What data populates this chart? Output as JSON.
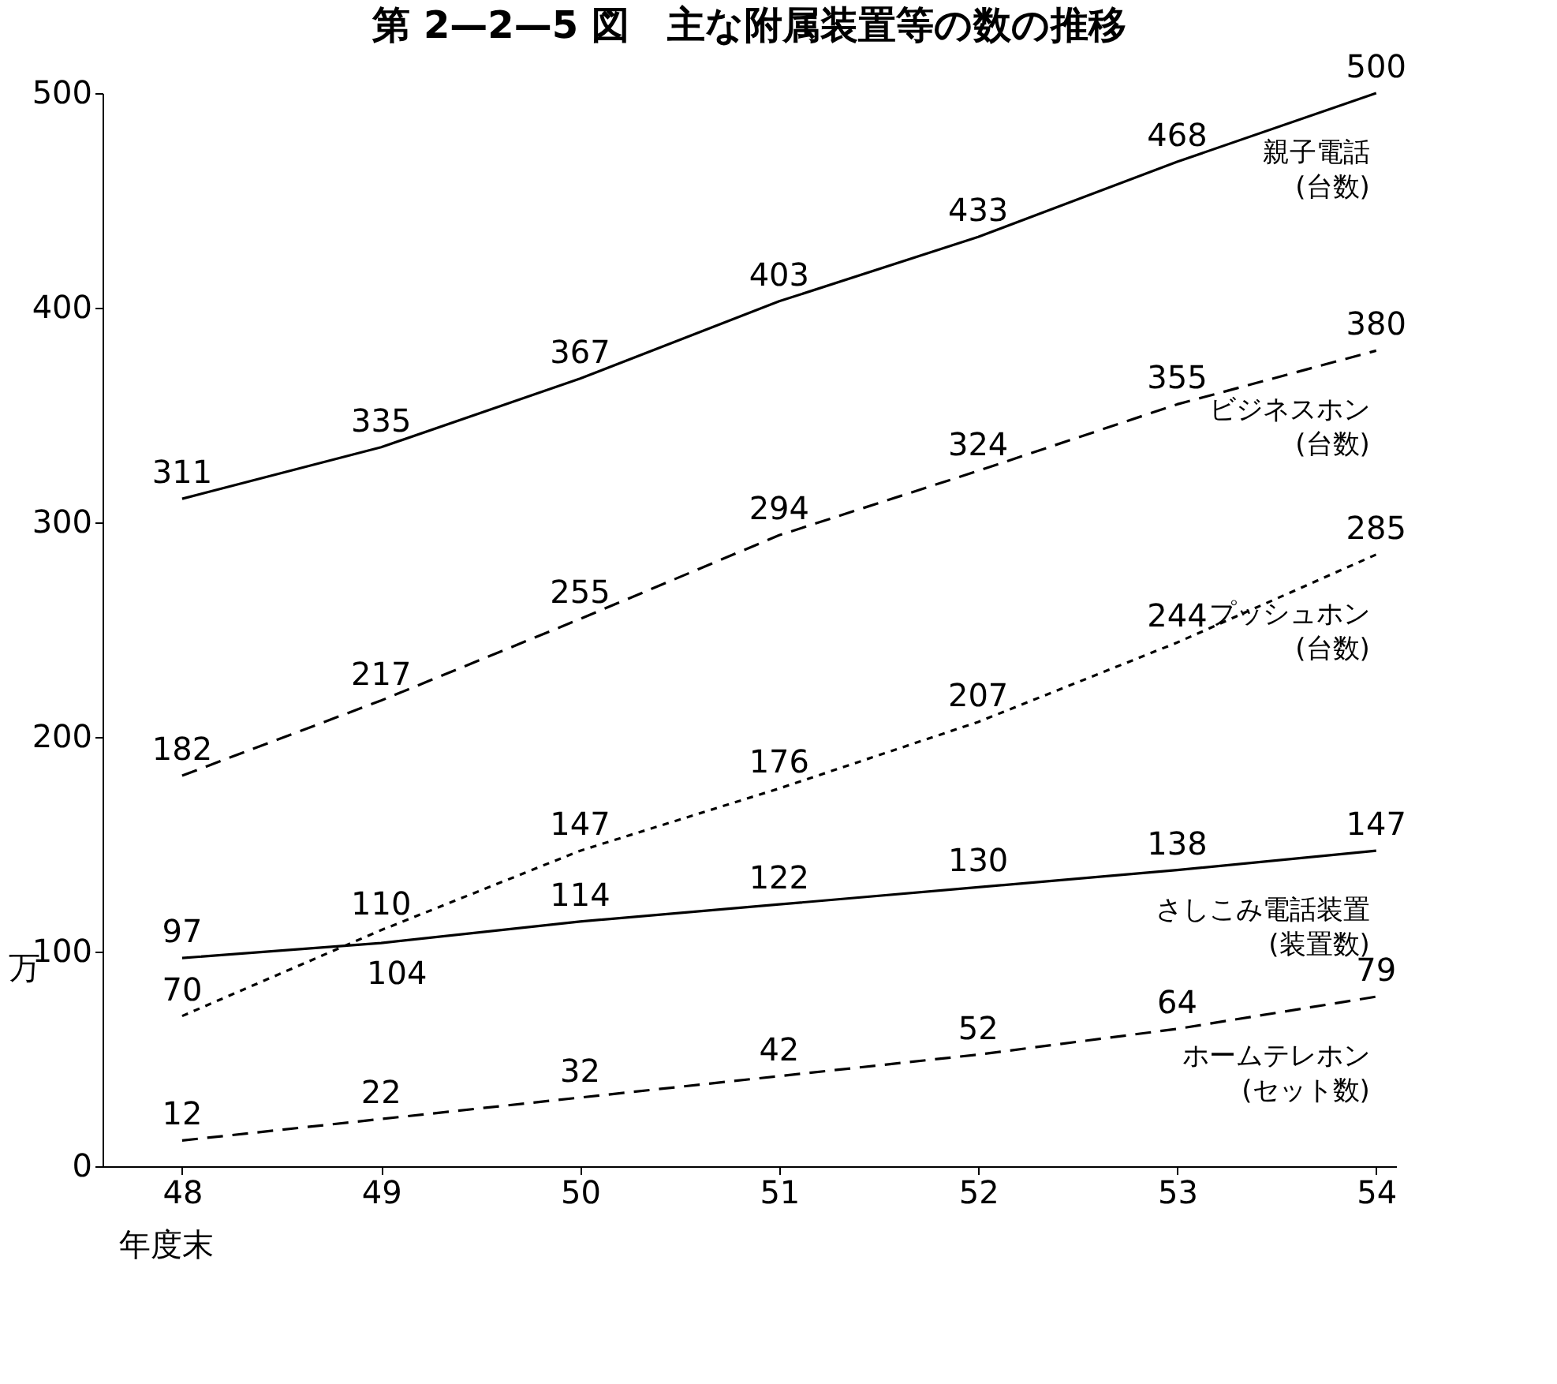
{
  "chart_data": {
    "type": "line",
    "title": "第 2—2—5 図　主な附属装置等の数の推移",
    "xlabel": "年度末",
    "ylabel": "万",
    "x": [
      48,
      49,
      50,
      51,
      52,
      53,
      54
    ],
    "xlim": [
      47.6,
      54.1
    ],
    "xticks": [
      48,
      49,
      50,
      51,
      52,
      53,
      54
    ],
    "ylim": [
      0,
      500
    ],
    "yticks": [
      0,
      100,
      200,
      300,
      400,
      500
    ],
    "grid": false,
    "legend": false,
    "marker": "none",
    "data_labels": true,
    "series": [
      {
        "name": "親子電話\n(台数)",
        "color": "#000000",
        "line_style": "solid",
        "values": [
          311,
          335,
          367,
          403,
          433,
          468,
          500
        ]
      },
      {
        "name": "ビジネスホン\n(台数)",
        "color": "#000000",
        "line_style": "dashed",
        "values": [
          182,
          217,
          255,
          294,
          324,
          355,
          380
        ]
      },
      {
        "name": "プッシュホン\n(台数)",
        "color": "#000000",
        "line_style": "dotted",
        "values": [
          70,
          110,
          147,
          176,
          207,
          244,
          285
        ]
      },
      {
        "name": "さしこみ電話装置\n(装置数)",
        "color": "#000000",
        "line_style": "solid",
        "values": [
          97,
          104,
          114,
          122,
          130,
          138,
          147
        ]
      },
      {
        "name": "ホームテレホン\n(セット数)",
        "color": "#000000",
        "line_style": "dashed",
        "values": [
          12,
          22,
          32,
          42,
          52,
          64,
          79
        ]
      }
    ]
  }
}
